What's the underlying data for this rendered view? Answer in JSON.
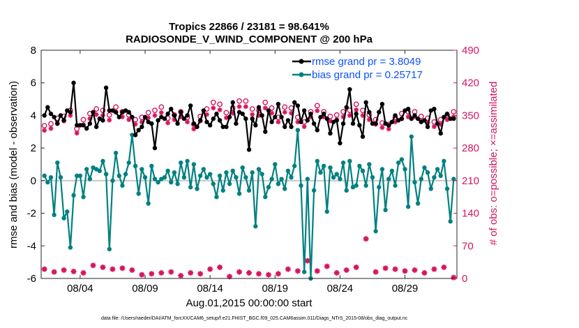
{
  "chart_data": {
    "type": "line",
    "title": "Tropics 22866 / 23181 = 98.641%",
    "subtitle": "RADIOSONDE_V_WIND_COMPONENT @ 200 hPa",
    "xlabel": "Aug.01,2015 00:00:00 start",
    "ylabel": "rmse and bias (model - observation)",
    "y2label": "# of obs: o=possible; ×=assimilated",
    "footnote": "data file: /Users/raeder/DAI/ATM_forcXX/CAM6_setup/f.e21.FHIST_BGC.f09_025.CAM6assim.011/Diags_NTrS_2015-08/obs_diag_output.nc",
    "xlim": [
      1,
      33
    ],
    "ylim": [
      -6,
      8
    ],
    "y2lim": [
      0,
      490
    ],
    "x_ticks": [
      4,
      9,
      14,
      19,
      24,
      29
    ],
    "x_tick_labels": [
      "08/04",
      "08/09",
      "08/14",
      "08/19",
      "08/24",
      "08/29"
    ],
    "y_ticks": [
      -6,
      -4,
      -2,
      0,
      2,
      4,
      6,
      8
    ],
    "y_tick_labels": [
      "-6",
      "-4",
      "-2",
      "0",
      "2",
      "4",
      "6",
      "8"
    ],
    "y2_ticks": [
      0,
      70,
      140,
      210,
      280,
      350,
      420,
      490
    ],
    "y2_tick_labels": [
      "0",
      "70",
      "140",
      "210",
      "280",
      "350",
      "420",
      "490"
    ],
    "legend": {
      "placement": "top-right",
      "entries": [
        "rmse grand pr = 3.8049",
        "bias grand pr = 0.25717"
      ]
    },
    "colors": {
      "rmse": "#000000",
      "bias": "#008080",
      "obs": "#d6145f",
      "zero_line": "#c8c8c8",
      "legend_text": "#0b51ff"
    },
    "x": [
      1.25,
      1.5,
      1.75,
      2.0,
      2.25,
      2.5,
      2.75,
      3.0,
      3.25,
      3.5,
      3.75,
      4.0,
      4.25,
      4.5,
      4.75,
      5.0,
      5.25,
      5.5,
      5.75,
      6.0,
      6.25,
      6.5,
      6.75,
      7.0,
      7.25,
      7.5,
      7.75,
      8.0,
      8.25,
      8.5,
      8.75,
      9.0,
      9.25,
      9.5,
      9.75,
      10.0,
      10.25,
      10.5,
      10.75,
      11.0,
      11.25,
      11.5,
      11.75,
      12.0,
      12.25,
      12.5,
      12.75,
      13.0,
      13.25,
      13.5,
      13.75,
      14.0,
      14.25,
      14.5,
      14.75,
      15.0,
      15.25,
      15.5,
      15.75,
      16.0,
      16.25,
      16.5,
      16.75,
      17.0,
      17.25,
      17.5,
      17.75,
      18.0,
      18.25,
      18.5,
      18.75,
      19.0,
      19.25,
      19.5,
      19.75,
      20.0,
      20.25,
      20.5,
      20.75,
      21.0,
      21.25,
      21.5,
      21.75,
      22.0,
      22.25,
      22.5,
      22.75,
      23.0,
      23.25,
      23.5,
      23.75,
      24.0,
      24.25,
      24.5,
      24.75,
      25.0,
      25.25,
      25.5,
      25.75,
      26.0,
      26.25,
      26.5,
      26.75,
      27.0,
      27.25,
      27.5,
      27.75,
      28.0,
      28.25,
      28.5,
      28.75,
      29.0,
      29.25,
      29.5,
      29.75,
      30.0,
      30.25,
      30.5,
      30.75,
      31.0,
      31.25,
      31.5,
      31.75,
      32.0,
      32.25,
      32.5,
      32.75
    ],
    "series": [
      {
        "name": "rmse",
        "values": [
          4.0,
          4.5,
          4.1,
          3.9,
          3.5,
          4.0,
          3.7,
          4.3,
          4.2,
          6.0,
          3.4,
          3.4,
          3.4,
          3.2,
          3.5,
          4.2,
          3.3,
          3.8,
          3.7,
          5.7,
          4.3,
          4.3,
          4.2,
          3.9,
          4.2,
          4.3,
          4.2,
          3.9,
          2.8,
          3.1,
          3.3,
          3.9,
          3.6,
          3.5,
          2.0,
          3.7,
          3.9,
          3.8,
          4.1,
          4.4,
          4.0,
          3.5,
          4.2,
          3.8,
          4.0,
          4.6,
          3.5,
          3.3,
          3.7,
          4.3,
          3.6,
          3.4,
          3.8,
          4.1,
          3.7,
          3.3,
          3.3,
          3.9,
          4.8,
          3.5,
          4.2,
          4.1,
          3.8,
          1.9,
          3.8,
          3.4,
          4.5,
          4.0,
          3.0,
          4.3,
          3.6,
          3.9,
          4.7,
          3.9,
          3.3,
          3.7,
          3.3,
          4.8,
          4.6,
          3.6,
          4.3,
          3.7,
          4.1,
          3.5,
          3.1,
          3.9,
          4.1,
          3.8,
          2.9,
          3.6,
          3.7,
          2.3,
          3.5,
          4.5,
          5.6,
          3.5,
          4.1,
          3.4,
          2.7,
          4.8,
          4.2,
          3.5,
          3.5,
          4.2,
          4.7,
          3.5,
          3.4,
          3.6,
          4.0,
          3.7,
          3.8,
          4.3,
          4.4,
          3.8,
          4.0,
          3.8,
          3.6,
          3.7,
          3.3,
          4.3,
          4.4,
          3.5,
          2.9,
          3.9,
          4.1,
          3.8,
          3.8
        ]
      },
      {
        "name": "bias",
        "values": [
          0.3,
          -0.1,
          0.2,
          -2.1,
          1.1,
          0.2,
          -2.3,
          -1.9,
          -4.1,
          -0.9,
          0.3,
          0.3,
          -1.0,
          0.7,
          0.1,
          0.8,
          0.7,
          0.6,
          1.2,
          0.4,
          -4.2,
          0.0,
          1.7,
          0.3,
          -0.3,
          0.4,
          1.1,
          2.8,
          0.9,
          -0.8,
          0.7,
          0.2,
          -1.4,
          0.9,
          0.1,
          -0.1,
          0.1,
          0.2,
          0.6,
          -0.1,
          0.5,
          -0.2,
          1.1,
          0.2,
          1.2,
          -0.4,
          1.0,
          -0.5,
          0.3,
          0.7,
          0.2,
          0.4,
          -0.2,
          -1.0,
          0.3,
          -0.6,
          0.5,
          -0.2,
          0.6,
          0.2,
          -0.8,
          0.8,
          0.2,
          -0.6,
          0.5,
          -2.8,
          0.7,
          0.4,
          -1.0,
          -0.4,
          0.1,
          1.0,
          -0.2,
          0.1,
          -0.5,
          0.6,
          0.2,
          0.9,
          3.1,
          -0.3,
          -5.6,
          0.1,
          -6.0,
          -0.6,
          1.2,
          0.5,
          0.9,
          -1.9,
          0.8,
          0.2,
          0.4,
          0.1,
          1.1,
          -0.6,
          1.2,
          -0.4,
          -0.3,
          0.9,
          0.6,
          -0.3,
          1.0,
          0.2,
          -3.1,
          -0.4,
          0.7,
          -1.8,
          0.1,
          0.6,
          -0.3,
          1.1,
          1.3,
          0.7,
          -1.6,
          2.7,
          -0.1,
          -1.4,
          0.1,
          0.8,
          0.5,
          -0.5,
          0.2,
          0.7,
          0.3,
          1.2,
          -0.5,
          -2.5,
          0.1
        ]
      }
    ],
    "obs_possible": [
      322,
      330,
      326,
      332,
      338,
      345,
      342,
      350,
      355,
      348,
      315,
      330,
      335,
      340,
      348,
      352,
      358,
      362,
      355,
      348,
      345,
      358,
      362,
      360,
      352,
      345,
      345,
      340,
      335,
      328,
      340,
      345,
      350,
      352,
      355,
      360,
      362,
      350,
      338,
      342,
      345,
      350,
      352,
      355,
      340,
      330,
      325,
      335,
      342,
      352,
      358,
      365,
      372,
      375,
      368,
      362,
      350,
      345,
      360,
      368,
      375,
      380,
      375,
      365,
      358,
      345,
      355,
      365,
      372,
      375,
      360,
      345,
      340,
      350,
      362,
      370,
      360,
      350,
      340,
      325,
      330,
      340,
      352,
      358,
      365,
      360,
      352,
      345,
      342,
      340,
      345,
      350,
      352,
      355,
      355,
      362,
      368,
      360,
      355,
      352,
      345,
      340,
      335,
      330,
      328,
      320,
      325,
      332,
      340,
      345,
      348,
      350,
      352,
      355,
      352,
      345,
      342,
      340,
      338,
      335,
      330,
      330,
      335,
      340,
      345,
      348,
      352
    ],
    "obs_assimilated": [
      318,
      325,
      322,
      328,
      333,
      340,
      338,
      345,
      350,
      343,
      312,
      326,
      330,
      336,
      343,
      347,
      352,
      356,
      350,
      343,
      340,
      352,
      357,
      355,
      347,
      341,
      341,
      336,
      331,
      325,
      336,
      341,
      345,
      347,
      350,
      355,
      356,
      345,
      334,
      338,
      341,
      345,
      347,
      350,
      336,
      326,
      321,
      331,
      338,
      347,
      352,
      360,
      366,
      369,
      362,
      357,
      345,
      341,
      355,
      362,
      369,
      374,
      369,
      360,
      352,
      341,
      350,
      360,
      366,
      369,
      355,
      341,
      336,
      345,
      357,
      364,
      355,
      345,
      336,
      321,
      326,
      336,
      347,
      352,
      360,
      355,
      347,
      341,
      338,
      336,
      341,
      345,
      347,
      350,
      350,
      357,
      362,
      355,
      350,
      347,
      341,
      336,
      331,
      326,
      324,
      317,
      321,
      328,
      336,
      341,
      343,
      345,
      347,
      350,
      347,
      341,
      338,
      336,
      334,
      331,
      326,
      326,
      331,
      336,
      341,
      343,
      347
    ],
    "obs_rejected": [
      20,
      12,
      22,
      14,
      8,
      25,
      18,
      10,
      30,
      15,
      22,
      26,
      12,
      20,
      16,
      28,
      10,
      18,
      24,
      14,
      8,
      20,
      28,
      16,
      22,
      12,
      26,
      18,
      10,
      20,
      8,
      22,
      14,
      10,
      16,
      24,
      12,
      18,
      8,
      14,
      20,
      10,
      6,
      16,
      22,
      12,
      8,
      18,
      10,
      14,
      6,
      20,
      10,
      16,
      24,
      12,
      8,
      4,
      18,
      10,
      14,
      20,
      8,
      12,
      16,
      6,
      10,
      14,
      22,
      8,
      12,
      16,
      10,
      6,
      18,
      20,
      12,
      8,
      16,
      22,
      12,
      38,
      30,
      24,
      16,
      20,
      32,
      26,
      14,
      20,
      12,
      8,
      30,
      18,
      22,
      16,
      24,
      12,
      20,
      85,
      28,
      10,
      14,
      18,
      12,
      22,
      8,
      14,
      20,
      42,
      26,
      16,
      10,
      22,
      18,
      14,
      28,
      12,
      8,
      16,
      20,
      10,
      14,
      24,
      6,
      4,
      2
    ]
  }
}
